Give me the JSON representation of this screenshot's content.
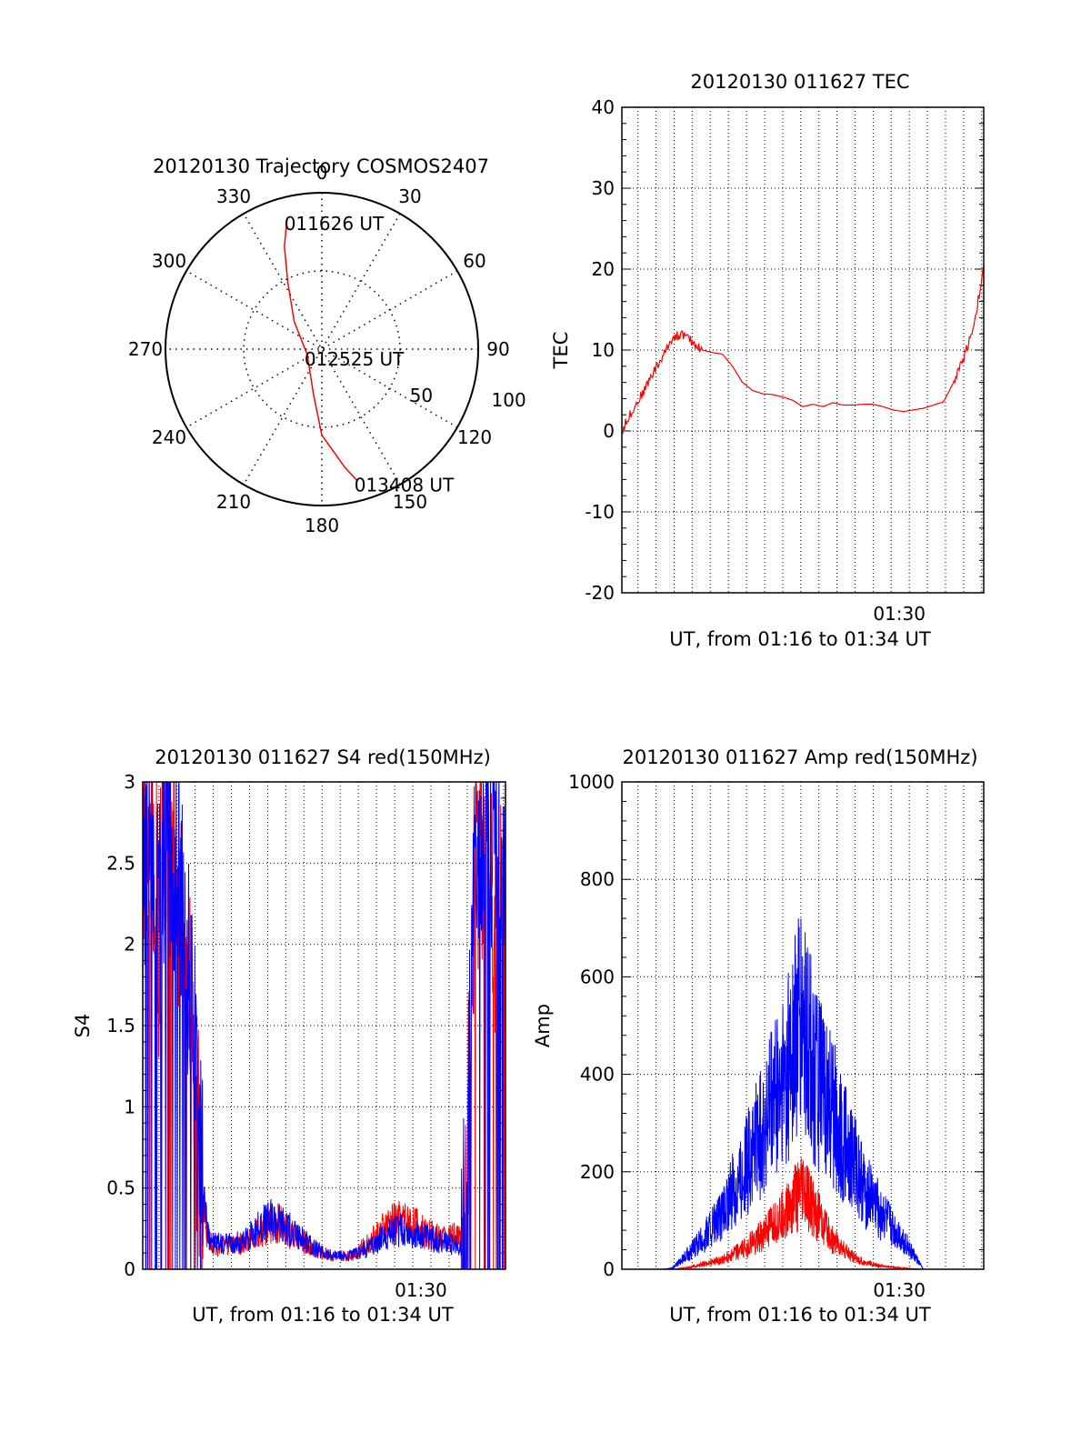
{
  "colors": {
    "red": "#ff0000",
    "blue": "#0000ff",
    "axis": "#000000",
    "grid": "#000000"
  },
  "chart_data": [
    {
      "type": "polar",
      "title": "20120130 Trajectory COSMOS2407",
      "angle_labels": [
        "0",
        "30",
        "60",
        "90",
        "120",
        "150",
        "180",
        "210",
        "240",
        "270",
        "300",
        "330"
      ],
      "radius_labels": [
        "50",
        "100"
      ],
      "rlim": [
        0,
        100
      ],
      "grid": true,
      "series": [
        {
          "color": "red",
          "points": [
            {
              "az": 345,
              "r": 86
            },
            {
              "az": 340,
              "r": 70
            },
            {
              "az": 333,
              "r": 48
            },
            {
              "az": 315,
              "r": 25
            },
            {
              "az": 250,
              "r": 10
            },
            {
              "az": 190,
              "r": 30
            },
            {
              "az": 180,
              "r": 55
            },
            {
              "az": 169,
              "r": 77
            },
            {
              "az": 165,
              "r": 87
            }
          ]
        }
      ],
      "annotations": [
        {
          "text": "011626 UT",
          "az": 345,
          "r": 86
        },
        {
          "text": "012525 UT",
          "az": 250,
          "r": 10
        },
        {
          "text": "013408 UT",
          "az": 165,
          "r": 87
        }
      ]
    },
    {
      "type": "line",
      "title": "20120130 011627 TEC",
      "ylabel": "TEC",
      "xlabel": "UT, from 01:16 to 01:34 UT",
      "x_range_minutes": [
        0,
        18
      ],
      "xticks": [
        {
          "at": 13.8,
          "label": "01:30"
        }
      ],
      "ylim": [
        -20,
        40
      ],
      "yticks": [
        "-20",
        "-10",
        "0",
        "10",
        "20",
        "30",
        "40"
      ],
      "grid": true,
      "series": [
        {
          "color": "red",
          "x": [
            0.0,
            0.5,
            1.0,
            1.5,
            2.0,
            2.5,
            3.0,
            3.5,
            4.0,
            4.5,
            5.0,
            5.5,
            6.0,
            6.5,
            7.0,
            7.5,
            8.0,
            8.5,
            9.0,
            9.5,
            10.0,
            10.5,
            11.0,
            11.5,
            12.0,
            12.5,
            13.0,
            13.5,
            14.0,
            14.5,
            15.0,
            15.5,
            16.0,
            16.5,
            17.0,
            17.5,
            18.0
          ],
          "y": [
            0.0,
            2.5,
            4.5,
            7.0,
            9.0,
            11.5,
            12.0,
            11.0,
            10.0,
            9.7,
            9.5,
            8.0,
            6.0,
            5.0,
            4.6,
            4.5,
            4.2,
            3.8,
            3.0,
            3.3,
            3.0,
            3.5,
            3.2,
            3.2,
            3.3,
            3.3,
            3.0,
            2.6,
            2.4,
            2.6,
            2.8,
            3.2,
            3.6,
            6.0,
            9.0,
            13.0,
            20.0
          ]
        }
      ]
    },
    {
      "type": "line",
      "title": "20120130 011627 S4 red(150MHz)",
      "ylabel": "S4",
      "xlabel": "UT, from 01:16 to 01:34 UT",
      "x_range_minutes": [
        0,
        18
      ],
      "xticks": [
        {
          "at": 13.8,
          "label": "01:30"
        }
      ],
      "ylim": [
        0,
        3
      ],
      "yticks": [
        "0",
        "0.5",
        "1",
        "1.5",
        "2",
        "2.5",
        "3"
      ],
      "grid": true,
      "series": [
        {
          "name": "",
          "color": "red",
          "x": [
            0.0,
            0.4,
            0.8,
            1.2,
            1.6,
            2.0,
            2.4,
            2.8,
            3.2,
            3.6,
            4.0,
            4.5,
            5.0,
            5.5,
            6.0,
            6.5,
            7.0,
            7.5,
            8.0,
            8.5,
            9.0,
            9.5,
            10.0,
            10.5,
            11.0,
            11.5,
            12.0,
            12.5,
            13.0,
            13.5,
            14.0,
            14.5,
            15.0,
            15.5,
            16.0,
            16.5,
            17.0,
            17.5,
            18.0
          ],
          "y": [
            2.5,
            3.0,
            2.0,
            3.0,
            2.6,
            2.0,
            1.5,
            0.6,
            0.2,
            0.15,
            0.14,
            0.15,
            0.16,
            0.2,
            0.25,
            0.3,
            0.26,
            0.2,
            0.17,
            0.12,
            0.1,
            0.08,
            0.08,
            0.1,
            0.14,
            0.2,
            0.25,
            0.3,
            0.3,
            0.28,
            0.22,
            0.2,
            0.2,
            0.2,
            0.2,
            2.5,
            2.8,
            2.2,
            2.0
          ]
        },
        {
          "name": "",
          "color": "blue",
          "x": [
            0.0,
            0.4,
            0.8,
            1.2,
            1.6,
            2.0,
            2.4,
            2.8,
            3.2,
            3.6,
            4.0,
            4.5,
            5.0,
            5.5,
            6.0,
            6.5,
            7.0,
            7.5,
            8.0,
            8.5,
            9.0,
            9.5,
            10.0,
            10.5,
            11.0,
            11.5,
            12.0,
            12.5,
            13.0,
            13.5,
            14.0,
            14.5,
            15.0,
            15.5,
            16.0,
            16.5,
            17.0,
            17.5,
            18.0
          ],
          "y": [
            2.2,
            2.7,
            2.0,
            2.8,
            2.4,
            2.2,
            1.8,
            0.8,
            0.22,
            0.16,
            0.15,
            0.16,
            0.17,
            0.22,
            0.28,
            0.32,
            0.28,
            0.22,
            0.18,
            0.13,
            0.1,
            0.08,
            0.08,
            0.09,
            0.12,
            0.16,
            0.2,
            0.24,
            0.24,
            0.22,
            0.2,
            0.18,
            0.16,
            0.15,
            0.14,
            2.6,
            2.9,
            2.5,
            2.3
          ]
        }
      ]
    },
    {
      "type": "line",
      "title": "20120130 011627 Amp red(150MHz)",
      "ylabel": "Amp",
      "xlabel": "UT, from 01:16 to 01:34 UT",
      "x_range_minutes": [
        0,
        18
      ],
      "xticks": [
        {
          "at": 13.8,
          "label": "01:30"
        }
      ],
      "ylim": [
        0,
        1000
      ],
      "yticks": [
        "0",
        "200",
        "400",
        "600",
        "800",
        "1000"
      ],
      "grid": true,
      "series": [
        {
          "color": "blue",
          "x": [
            0,
            1,
            2,
            2.5,
            3,
            3.5,
            4,
            4.5,
            5,
            5.5,
            6,
            6.5,
            7,
            7.5,
            8,
            8.5,
            9,
            9.5,
            10,
            10.5,
            11,
            11.5,
            12,
            12.5,
            13,
            13.5,
            14,
            15,
            16,
            17,
            18
          ],
          "y": [
            0,
            0,
            0,
            2,
            20,
            40,
            60,
            90,
            110,
            160,
            200,
            240,
            290,
            340,
            380,
            460,
            500,
            420,
            360,
            320,
            270,
            220,
            170,
            140,
            110,
            80,
            60,
            0,
            0,
            0,
            0
          ]
        },
        {
          "color": "red",
          "x": [
            0,
            1,
            2,
            2.5,
            3,
            3.5,
            4,
            4.5,
            5,
            5.5,
            6,
            6.5,
            7,
            7.5,
            8,
            8.5,
            9,
            9.5,
            10,
            10.5,
            11,
            11.5,
            12,
            12.5,
            13,
            13.5,
            14,
            15,
            16,
            17,
            18
          ],
          "y": [
            0,
            0,
            0,
            0,
            2,
            5,
            10,
            15,
            20,
            30,
            40,
            55,
            70,
            90,
            110,
            140,
            160,
            130,
            90,
            60,
            40,
            25,
            15,
            10,
            6,
            4,
            2,
            0,
            0,
            0,
            0
          ]
        }
      ]
    }
  ]
}
